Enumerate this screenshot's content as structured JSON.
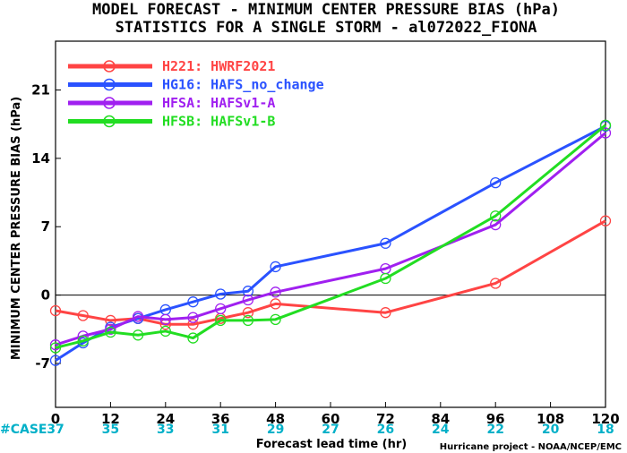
{
  "chart_data": {
    "type": "line",
    "title": "MODEL FORECAST - MINIMUM CENTER PRESSURE BIAS (hPa)",
    "subtitle": "STATISTICS FOR A SINGLE STORM - al072022_FIONA",
    "xlabel": "Forecast lead time (hr)",
    "ylabel": "MINIMUM CENTER PRESSURE BIAS (hPa)",
    "xlim": [
      0,
      120
    ],
    "ylim": [
      -11.5,
      26
    ],
    "x_ticks": [
      0,
      12,
      24,
      36,
      48,
      60,
      72,
      84,
      96,
      108,
      120
    ],
    "y_ticks": [
      -7,
      0,
      7,
      14,
      21
    ],
    "grid": false,
    "zero_line": true,
    "legend_position": "top-left",
    "case_label": "#CASE",
    "case_counts": [
      "37",
      "35",
      "33",
      "31",
      "29",
      "27",
      "26",
      "24",
      "22",
      "20",
      "18"
    ],
    "credit": "Hurricane project - NOAA/NCEP/EMC",
    "series": [
      {
        "name": "H221: HWRF2021",
        "color": "#ff4444",
        "points": [
          [
            0,
            -1.6
          ],
          [
            6,
            -2.1
          ],
          [
            12,
            -2.6
          ],
          [
            18,
            -2.4
          ],
          [
            24,
            -3.0
          ],
          [
            30,
            -3.0
          ],
          [
            36,
            -2.4
          ],
          [
            42,
            -1.8
          ],
          [
            48,
            -0.9
          ],
          [
            72,
            -1.8
          ],
          [
            96,
            1.2
          ],
          [
            120,
            7.6
          ]
        ]
      },
      {
        "name": "HG16: HAFS_no_change",
        "color": "#2a52ff",
        "points": [
          [
            0,
            -6.7
          ],
          [
            6,
            -4.9
          ],
          [
            12,
            -3.3
          ],
          [
            18,
            -2.4
          ],
          [
            24,
            -1.5
          ],
          [
            30,
            -0.7
          ],
          [
            36,
            0.1
          ],
          [
            42,
            0.4
          ],
          [
            48,
            2.9
          ],
          [
            72,
            5.3
          ],
          [
            96,
            11.5
          ],
          [
            120,
            17.3
          ]
        ]
      },
      {
        "name": "HFSA: HAFSv1-A",
        "color": "#a020f0",
        "points": [
          [
            0,
            -5.1
          ],
          [
            6,
            -4.2
          ],
          [
            12,
            -3.5
          ],
          [
            18,
            -2.2
          ],
          [
            24,
            -2.5
          ],
          [
            30,
            -2.3
          ],
          [
            36,
            -1.4
          ],
          [
            42,
            -0.5
          ],
          [
            48,
            0.3
          ],
          [
            72,
            2.7
          ],
          [
            96,
            7.2
          ],
          [
            120,
            16.6
          ]
        ]
      },
      {
        "name": "HFSB: HAFSv1-B",
        "color": "#22dd22",
        "points": [
          [
            0,
            -5.4
          ],
          [
            6,
            -4.7
          ],
          [
            12,
            -3.8
          ],
          [
            18,
            -4.1
          ],
          [
            24,
            -3.7
          ],
          [
            30,
            -4.4
          ],
          [
            36,
            -2.6
          ],
          [
            42,
            -2.6
          ],
          [
            48,
            -2.5
          ],
          [
            72,
            1.7
          ],
          [
            96,
            8.1
          ],
          [
            120,
            17.4
          ]
        ]
      }
    ]
  }
}
